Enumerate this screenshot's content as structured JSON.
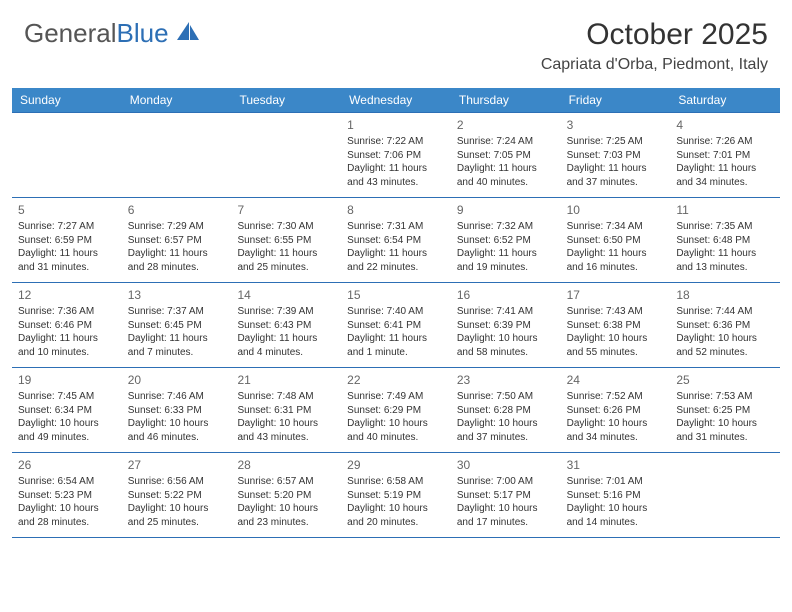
{
  "logo": {
    "general": "General",
    "blue": "Blue"
  },
  "title": "October 2025",
  "location": "Capriata d'Orba, Piedmont, Italy",
  "colors": {
    "header_bg": "#3b87c8",
    "rule": "#2d6fb5",
    "logo_blue": "#2d6fb5",
    "bg": "#ffffff"
  },
  "dow": [
    "Sunday",
    "Monday",
    "Tuesday",
    "Wednesday",
    "Thursday",
    "Friday",
    "Saturday"
  ],
  "weeks": [
    [
      null,
      null,
      null,
      {
        "n": "1",
        "sr": "7:22 AM",
        "ss": "7:06 PM",
        "dh": "11",
        "dm": "43"
      },
      {
        "n": "2",
        "sr": "7:24 AM",
        "ss": "7:05 PM",
        "dh": "11",
        "dm": "40"
      },
      {
        "n": "3",
        "sr": "7:25 AM",
        "ss": "7:03 PM",
        "dh": "11",
        "dm": "37"
      },
      {
        "n": "4",
        "sr": "7:26 AM",
        "ss": "7:01 PM",
        "dh": "11",
        "dm": "34"
      }
    ],
    [
      {
        "n": "5",
        "sr": "7:27 AM",
        "ss": "6:59 PM",
        "dh": "11",
        "dm": "31"
      },
      {
        "n": "6",
        "sr": "7:29 AM",
        "ss": "6:57 PM",
        "dh": "11",
        "dm": "28"
      },
      {
        "n": "7",
        "sr": "7:30 AM",
        "ss": "6:55 PM",
        "dh": "11",
        "dm": "25"
      },
      {
        "n": "8",
        "sr": "7:31 AM",
        "ss": "6:54 PM",
        "dh": "11",
        "dm": "22"
      },
      {
        "n": "9",
        "sr": "7:32 AM",
        "ss": "6:52 PM",
        "dh": "11",
        "dm": "19"
      },
      {
        "n": "10",
        "sr": "7:34 AM",
        "ss": "6:50 PM",
        "dh": "11",
        "dm": "16"
      },
      {
        "n": "11",
        "sr": "7:35 AM",
        "ss": "6:48 PM",
        "dh": "11",
        "dm": "13"
      }
    ],
    [
      {
        "n": "12",
        "sr": "7:36 AM",
        "ss": "6:46 PM",
        "dh": "11",
        "dm": "10"
      },
      {
        "n": "13",
        "sr": "7:37 AM",
        "ss": "6:45 PM",
        "dh": "11",
        "dm": "7"
      },
      {
        "n": "14",
        "sr": "7:39 AM",
        "ss": "6:43 PM",
        "dh": "11",
        "dm": "4"
      },
      {
        "n": "15",
        "sr": "7:40 AM",
        "ss": "6:41 PM",
        "dh": "11",
        "dm": "1"
      },
      {
        "n": "16",
        "sr": "7:41 AM",
        "ss": "6:39 PM",
        "dh": "10",
        "dm": "58"
      },
      {
        "n": "17",
        "sr": "7:43 AM",
        "ss": "6:38 PM",
        "dh": "10",
        "dm": "55"
      },
      {
        "n": "18",
        "sr": "7:44 AM",
        "ss": "6:36 PM",
        "dh": "10",
        "dm": "52"
      }
    ],
    [
      {
        "n": "19",
        "sr": "7:45 AM",
        "ss": "6:34 PM",
        "dh": "10",
        "dm": "49"
      },
      {
        "n": "20",
        "sr": "7:46 AM",
        "ss": "6:33 PM",
        "dh": "10",
        "dm": "46"
      },
      {
        "n": "21",
        "sr": "7:48 AM",
        "ss": "6:31 PM",
        "dh": "10",
        "dm": "43"
      },
      {
        "n": "22",
        "sr": "7:49 AM",
        "ss": "6:29 PM",
        "dh": "10",
        "dm": "40"
      },
      {
        "n": "23",
        "sr": "7:50 AM",
        "ss": "6:28 PM",
        "dh": "10",
        "dm": "37"
      },
      {
        "n": "24",
        "sr": "7:52 AM",
        "ss": "6:26 PM",
        "dh": "10",
        "dm": "34"
      },
      {
        "n": "25",
        "sr": "7:53 AM",
        "ss": "6:25 PM",
        "dh": "10",
        "dm": "31"
      }
    ],
    [
      {
        "n": "26",
        "sr": "6:54 AM",
        "ss": "5:23 PM",
        "dh": "10",
        "dm": "28"
      },
      {
        "n": "27",
        "sr": "6:56 AM",
        "ss": "5:22 PM",
        "dh": "10",
        "dm": "25"
      },
      {
        "n": "28",
        "sr": "6:57 AM",
        "ss": "5:20 PM",
        "dh": "10",
        "dm": "23"
      },
      {
        "n": "29",
        "sr": "6:58 AM",
        "ss": "5:19 PM",
        "dh": "10",
        "dm": "20"
      },
      {
        "n": "30",
        "sr": "7:00 AM",
        "ss": "5:17 PM",
        "dh": "10",
        "dm": "17"
      },
      {
        "n": "31",
        "sr": "7:01 AM",
        "ss": "5:16 PM",
        "dh": "10",
        "dm": "14"
      },
      null
    ]
  ]
}
